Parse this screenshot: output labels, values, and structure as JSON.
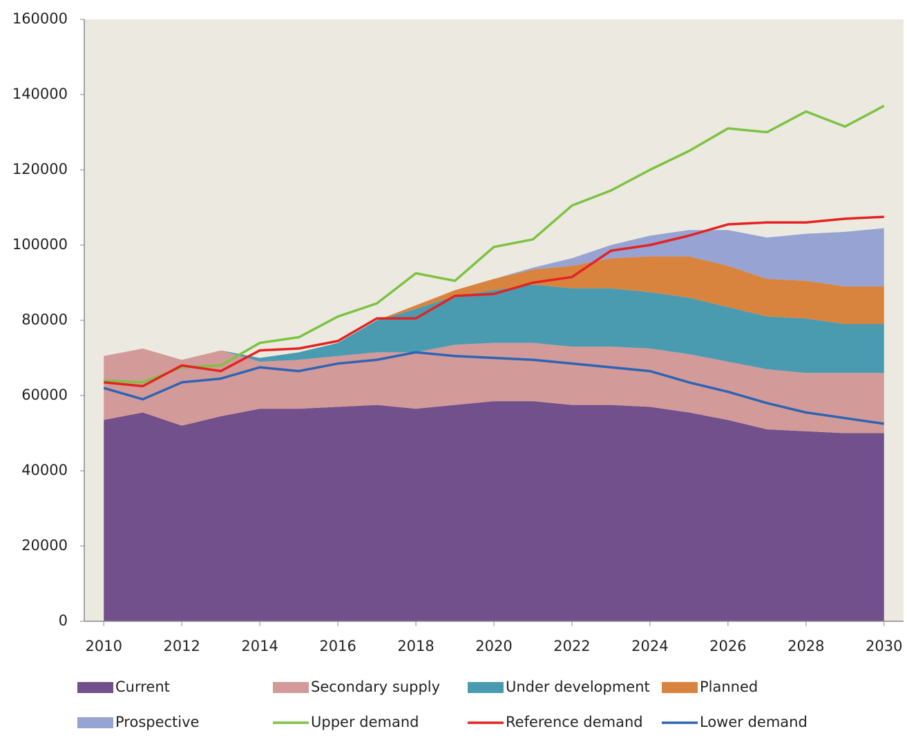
{
  "chart_data": {
    "type": "stacked_area_line",
    "x": [
      2010,
      2011,
      2012,
      2013,
      2014,
      2015,
      2016,
      2017,
      2018,
      2019,
      2020,
      2021,
      2022,
      2023,
      2024,
      2025,
      2026,
      2027,
      2028,
      2029,
      2030
    ],
    "xlim": [
      2009.5,
      2030.5
    ],
    "xticks": [
      2010,
      2012,
      2014,
      2016,
      2018,
      2020,
      2022,
      2024,
      2026,
      2028,
      2030
    ],
    "ylim": [
      0,
      160000
    ],
    "yticks": [
      0,
      20000,
      40000,
      60000,
      80000,
      100000,
      120000,
      140000,
      160000
    ],
    "areas": [
      {
        "name": "Current",
        "color": "#71508b",
        "values": [
          53500,
          55500,
          52000,
          54500,
          56500,
          56500,
          57000,
          57500,
          56500,
          57500,
          58500,
          58500,
          57500,
          57500,
          57000,
          55500,
          53500,
          51000,
          50500,
          50000,
          50000
        ]
      },
      {
        "name": "Secondary supply",
        "color": "#d39a9a",
        "values": [
          17000,
          17000,
          17500,
          17500,
          12500,
          13000,
          13500,
          14000,
          15000,
          16000,
          15500,
          15500,
          15500,
          15500,
          15500,
          15500,
          15500,
          16000,
          15500,
          16000,
          16000
        ]
      },
      {
        "name": "Under development",
        "color": "#4b9bb0",
        "values": [
          0,
          0,
          0,
          0,
          1000,
          2000,
          3500,
          8500,
          11500,
          13000,
          14000,
          15500,
          15500,
          15500,
          15000,
          15000,
          14500,
          14000,
          14500,
          13000,
          13000
        ]
      },
      {
        "name": "Planned",
        "color": "#d9843e",
        "values": [
          0,
          0,
          0,
          0,
          0,
          0,
          0,
          0,
          1000,
          1500,
          3000,
          4000,
          6000,
          8000,
          9500,
          11000,
          11000,
          10000,
          10000,
          10000,
          10000
        ]
      },
      {
        "name": "Prospective",
        "color": "#97a3d3",
        "values": [
          0,
          0,
          0,
          0,
          0,
          0,
          0,
          0,
          0,
          0,
          0,
          500,
          2000,
          3500,
          5500,
          7000,
          9500,
          11000,
          12500,
          14500,
          15500
        ]
      }
    ],
    "lines": [
      {
        "name": "Upper  demand",
        "color": "#7dc242",
        "values": [
          64000,
          63500,
          67500,
          68000,
          74000,
          75500,
          81000,
          84500,
          92500,
          90500,
          99500,
          101500,
          110500,
          114500,
          120000,
          125000,
          131000,
          130000,
          135500,
          131500,
          137000
        ]
      },
      {
        "name": "Reference demand",
        "color": "#e52222",
        "values": [
          63500,
          62500,
          68000,
          66500,
          72000,
          72500,
          74500,
          80500,
          80500,
          86500,
          87000,
          90000,
          91500,
          98500,
          100000,
          102500,
          105500,
          106000,
          106000,
          107000,
          107500
        ]
      },
      {
        "name": "Lower demand",
        "color": "#2c64b4",
        "values": [
          62000,
          59000,
          63500,
          64500,
          67500,
          66500,
          68500,
          69500,
          71500,
          70500,
          70000,
          69500,
          68500,
          67500,
          66500,
          63500,
          61000,
          58000,
          55500,
          54000,
          52500
        ]
      }
    ]
  }
}
